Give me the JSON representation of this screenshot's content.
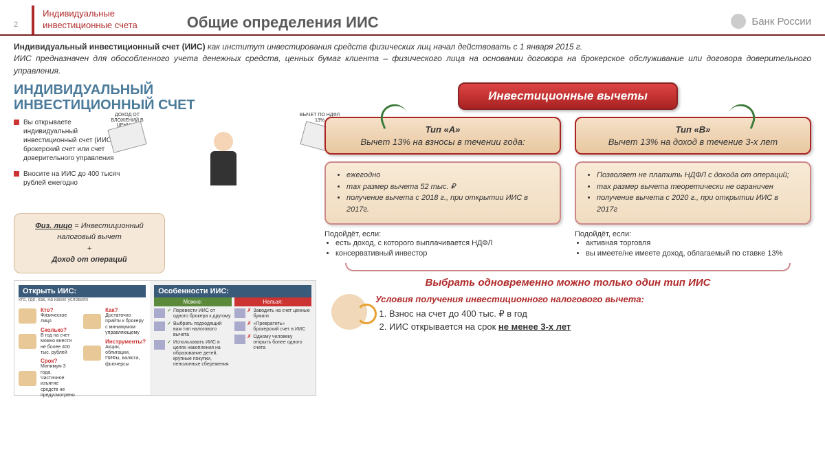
{
  "header": {
    "page_num": "2",
    "tab_line1": "Индивидуальные",
    "tab_line2": "инвестиционные счета",
    "title": "Общие определения ИИС",
    "bank": "Банк России"
  },
  "intro": {
    "bold": "Индивидуальный инвестиционный счет (ИИС)",
    "p1": " как институт инвестирования средств физических лиц начал действовать с 1 января 2015 г.",
    "p2": "ИИС предназначен для обособленного учета денежных средств, ценных бумаг клиента – физического лица на основании договора на брокерское обслуживание или договора доверительного управления."
  },
  "left": {
    "title1": "ИНДИВИДУАЛЬНЫЙ",
    "title2": "ИНВЕСТИЦИОННЫЙ СЧЕТ",
    "bullet1": "Вы открываете индивидуальный инвестиционный счет (ИИС) — брокерский счет или счет доверительного управления",
    "bullet2": "Вносите на ИИС до 400 тысяч рублей ежегодно",
    "env_left": "ДОХОД ОТ ВЛОЖЕНИЙ В ЦЕННЫЕ БУМАГИ",
    "env_right": "ВЫЧЕТ ПО НДФЛ 13%",
    "formula_u": "Физ. лицо",
    "formula_1": " = Инвестиционный налоговый вычет",
    "formula_plus": "+",
    "formula_2": "Доход от операций"
  },
  "footer": {
    "open_title": "Открыть ИИС:",
    "open_sub": "кто, где, как, на каких условиях",
    "q1": "Кто?",
    "a1": "Физическое лицо",
    "q2": "Сколько?",
    "a2": "В год на счет можно внести не более 400 тыс. рублей",
    "q3": "Срок?",
    "a3": "Минимум 3 года. Частичное изъятие средств не предусмотрено",
    "q4": "Как?",
    "a4": "Достаточно прийти к брокеру с минимумом управляющему",
    "q5": "Инструменты?",
    "a5": "Акции, облигации, ПИФы, валюта, фьючерсы",
    "feat_title": "Особенности ИИС:",
    "can": "Можно:",
    "cant": "Нельзя:",
    "can1": "Перевести ИИС от одного брокера к другому",
    "can2": "Выбрать подходящий вам тип налогового вычета",
    "can3": "Использовать ИИС в целях накопления на образование детей, крупные покупки, пенсионные сбережения",
    "cant1": "Заводить на счет ценные бумаги",
    "cant2": "«Превратить» брокерский счет в ИИС",
    "cant3": "Одному человеку открыть более одного счета"
  },
  "right": {
    "vychety": "Инвестиционные вычеты",
    "typeA": {
      "name": "Тип «А»",
      "desc": "Вычет 13%  на взносы в течении года:",
      "items": [
        "ежегодно",
        "max размер вычета 52 тыс. ₽",
        "получение вычета с 2018 г., при открытии ИИС в 2017г."
      ]
    },
    "typeB": {
      "name": "Тип «В»",
      "desc": "Вычет 13% на доход в течение 3-х лет",
      "items": [
        "Позволяет не платить НДФЛ с дохода от операций;",
        "max размер вычета теоретически не ограничен",
        "получение вычета с 2020 г., при открытии ИИС в 2017г"
      ]
    },
    "suitA": {
      "h": "Подойдёт, если:",
      "items": [
        "есть доход, с которого выплачивается НДФЛ",
        "консервативный инвестор"
      ]
    },
    "suitB": {
      "h": "Подойдёт, если:",
      "items": [
        "активная торговля",
        "вы имеете/не имеете доход, облагаемый по ставке 13%"
      ]
    },
    "choose": "Выбрать одновременно можно  только один тип ИИС",
    "cond_title": "Условия получения инвестиционного налогового вычета:",
    "cond1": "Взнос на счет до 400 тыс. ₽ в год",
    "cond2_a": "ИИС открывается на срок ",
    "cond2_u": "не менее 3-х лет"
  },
  "colors": {
    "accent": "#b02a2a",
    "tan": "#f5e8d8",
    "green": "#3a7a3a"
  }
}
